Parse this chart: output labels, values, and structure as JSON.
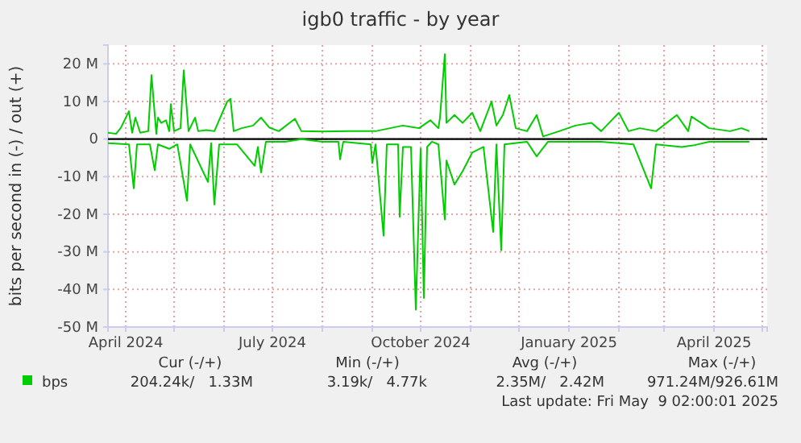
{
  "chart_data": {
    "type": "line",
    "title": "igb0 traffic - by year",
    "ylabel": "bits per second in (-) / out (+)",
    "xlim": [
      "2024-03-21",
      "2025-05-04"
    ],
    "ylim": [
      -50000000,
      25000000
    ],
    "xticks": [
      {
        "value": "2024-04-01",
        "label": "April 2024"
      },
      {
        "value": "2024-05-01",
        "label": null
      },
      {
        "value": "2024-06-01",
        "label": null
      },
      {
        "value": "2024-07-01",
        "label": "July 2024"
      },
      {
        "value": "2024-08-01",
        "label": null
      },
      {
        "value": "2024-09-01",
        "label": null
      },
      {
        "value": "2024-10-01",
        "label": "October 2024"
      },
      {
        "value": "2024-11-01",
        "label": null
      },
      {
        "value": "2024-12-01",
        "label": null
      },
      {
        "value": "2025-01-01",
        "label": "January 2025"
      },
      {
        "value": "2025-02-01",
        "label": null
      },
      {
        "value": "2025-03-01",
        "label": null
      },
      {
        "value": "2025-04-01",
        "label": "April 2025"
      },
      {
        "value": "2025-05-01",
        "label": null
      }
    ],
    "yticks": [
      {
        "value": -50000000,
        "label": "-50 M"
      },
      {
        "value": -40000000,
        "label": "-40 M"
      },
      {
        "value": -30000000,
        "label": "-30 M"
      },
      {
        "value": -20000000,
        "label": "-20 M"
      },
      {
        "value": -10000000,
        "label": "-10 M"
      },
      0,
      {
        "value": 10000000,
        "label": "10 M"
      },
      {
        "value": 20000000,
        "label": "20 M"
      }
    ],
    "grid": true,
    "legend": "bottom",
    "line_style": "solid",
    "ref_lines": [
      {
        "axis": "y",
        "value": 0,
        "color": "#000000"
      }
    ],
    "series": [
      {
        "name": "bps",
        "color": "#00cc00",
        "x": [
          "2024-03-21",
          "2024-03-26",
          "2024-03-29",
          "2024-04-03",
          "2024-04-05",
          "2024-04-07",
          "2024-04-10",
          "2024-04-15",
          "2024-04-17",
          "2024-04-20",
          "2024-04-21",
          "2024-04-23",
          "2024-04-26",
          "2024-04-28",
          "2024-04-29",
          "2024-05-01",
          "2024-05-05",
          "2024-05-07",
          "2024-05-10",
          "2024-05-14",
          "2024-05-16",
          "2024-05-21",
          "2024-05-26",
          "2024-06-03",
          "2024-06-05",
          "2024-06-07",
          "2024-06-12",
          "2024-06-19",
          "2024-06-24",
          "2024-06-29",
          "2024-07-05",
          "2024-07-15",
          "2024-07-19",
          "2024-08-01",
          "2024-08-18",
          "2024-09-03",
          "2024-09-20",
          "2024-09-30",
          "2024-10-07",
          "2024-10-12",
          "2024-10-13",
          "2024-10-16",
          "2024-10-17",
          "2024-10-22",
          "2024-10-27",
          "2024-11-02",
          "2024-11-07",
          "2024-11-14",
          "2024-11-17",
          "2024-11-21",
          "2024-11-25",
          "2024-11-29",
          "2024-12-06",
          "2024-12-12",
          "2024-12-16",
          "2024-12-26",
          "2025-01-05",
          "2025-01-15",
          "2025-01-21",
          "2025-02-01",
          "2025-02-07",
          "2025-02-14",
          "2025-02-24",
          "2025-03-09",
          "2025-03-16",
          "2025-03-18",
          "2025-03-29",
          "2025-04-11",
          "2025-04-18",
          "2025-04-23"
        ],
        "values": [
          1700000,
          1400000,
          3000000,
          7400000,
          1700000,
          5700000,
          1700000,
          2100000,
          17000000,
          1400000,
          5700000,
          4300000,
          5000000,
          2100000,
          9300000,
          2100000,
          2900000,
          18300000,
          2100000,
          5700000,
          2100000,
          2400000,
          2100000,
          10000000,
          10700000,
          2100000,
          2900000,
          3600000,
          5700000,
          3100000,
          2100000,
          5400000,
          2100000,
          2000000,
          2100000,
          2100000,
          3600000,
          2900000,
          5000000,
          2900000,
          5700000,
          22600000,
          4300000,
          6400000,
          4300000,
          7000000,
          2100000,
          10000000,
          3600000,
          6400000,
          11700000,
          2900000,
          2100000,
          6400000,
          700000,
          2100000,
          3600000,
          4300000,
          2100000,
          7000000,
          2100000,
          2900000,
          2100000,
          6400000,
          2100000,
          6000000,
          2900000,
          2100000,
          2900000,
          2100000
        ]
      },
      {
        "color": "#00cc00",
        "x": [
          "2024-03-21",
          "2024-04-03",
          "2024-04-06",
          "2024-04-08",
          "2024-04-16",
          "2024-04-19",
          "2024-04-21",
          "2024-04-28",
          "2024-05-03",
          "2024-05-09",
          "2024-05-11",
          "2024-05-22",
          "2024-05-24",
          "2024-05-26",
          "2024-05-29",
          "2024-06-09",
          "2024-06-20",
          "2024-06-22",
          "2024-06-24",
          "2024-06-27",
          "2024-07-09",
          "2024-07-19",
          "2024-08-01",
          "2024-08-11",
          "2024-08-12",
          "2024-08-14",
          "2024-08-31",
          "2024-09-01",
          "2024-09-03",
          "2024-09-08",
          "2024-09-10",
          "2024-09-17",
          "2024-09-18",
          "2024-09-20",
          "2024-09-25",
          "2024-09-28",
          "2024-10-01",
          "2024-10-03",
          "2024-10-05",
          "2024-10-08",
          "2024-10-12",
          "2024-10-16",
          "2024-10-17",
          "2024-10-22",
          "2024-10-27",
          "2024-11-02",
          "2024-11-09",
          "2024-11-15",
          "2024-11-17",
          "2024-11-20",
          "2024-11-22",
          "2024-12-06",
          "2024-12-12",
          "2024-12-19",
          "2025-01-21",
          "2025-02-10",
          "2025-02-21",
          "2025-02-24",
          "2025-03-12",
          "2025-03-19",
          "2025-03-29",
          "2025-04-11",
          "2025-04-23"
        ],
        "values": [
          -1100000,
          -1400000,
          -13100000,
          -1400000,
          -1400000,
          -8300000,
          -1400000,
          -2600000,
          -1400000,
          -16400000,
          -1400000,
          -11400000,
          -1100000,
          -17400000,
          -1400000,
          -1400000,
          -7100000,
          -2100000,
          -8900000,
          -700000,
          -700000,
          0,
          -700000,
          -700000,
          -5400000,
          -700000,
          -1400000,
          -6400000,
          -1400000,
          -25700000,
          -1400000,
          -1400000,
          -20700000,
          -2100000,
          -2100000,
          -45400000,
          -2600000,
          -42300000,
          -2100000,
          -700000,
          -1400000,
          -21400000,
          -5700000,
          -12100000,
          -8600000,
          -3600000,
          -2100000,
          -24700000,
          -1400000,
          -29600000,
          -1400000,
          -700000,
          -4600000,
          -700000,
          -700000,
          -1400000,
          -13100000,
          -1400000,
          -2100000,
          -1700000,
          -700000,
          -700000,
          -700000
        ]
      }
    ],
    "annotations": [
      "Cur (-/+)",
      "Min (-/+)",
      "Avg (-/+)",
      "Max (-/+)",
      "204.24k/   1.33M",
      "3.19k/   4.77k",
      "2.35M/   2.42M",
      "971.24M/926.61M",
      "Last update: Fri May  9 02:00:01 2025"
    ]
  }
}
